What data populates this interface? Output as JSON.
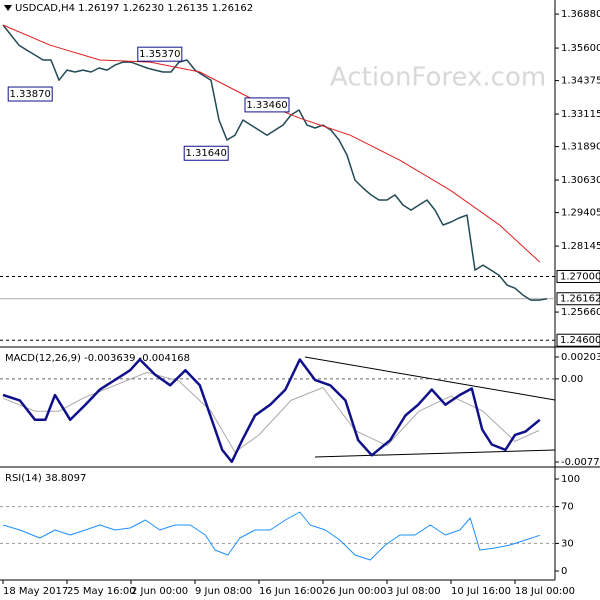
{
  "chart_data": [
    {
      "type": "line",
      "title": "USDCAD,H4  1.26197 1.26230 1.26135 1.26162",
      "watermark": "ActionForex.com",
      "xlim": [
        0,
        69
      ],
      "ylim": [
        1.2442,
        1.3741
      ],
      "yticks": [
        {
          "value": 1.3688,
          "label": "1.36880"
        },
        {
          "value": 1.356,
          "label": "1.35600"
        },
        {
          "value": 1.34375,
          "label": "1.34375"
        },
        {
          "value": 1.33115,
          "label": "1.33115"
        },
        {
          "value": 1.3189,
          "label": "1.31890"
        },
        {
          "value": 1.3063,
          "label": "1.30630"
        },
        {
          "value": 1.29405,
          "label": "1.29405"
        },
        {
          "value": 1.28145,
          "label": "1.28145"
        },
        {
          "value": 1.2566,
          "label": "1.25660"
        }
      ],
      "levels": [
        {
          "value": 1.27,
          "label": "1.27000",
          "style": "dashed"
        },
        {
          "value": 1.26162,
          "label": "1.26162",
          "style": "solid"
        },
        {
          "value": 1.246,
          "label": "1.24600",
          "style": "dashed"
        }
      ],
      "annotations": [
        {
          "label": "1.35370",
          "x": 19.6,
          "y": 1.3537
        },
        {
          "label": "1.33870",
          "x": 3.4,
          "y": 1.3387
        },
        {
          "label": "1.33460",
          "x": 33,
          "y": 1.3346
        },
        {
          "label": "1.31640",
          "x": 25.4,
          "y": 1.3164
        }
      ],
      "series": [
        {
          "color": "#234a57",
          "width": 1.5,
          "x": [
            0,
            1,
            2,
            3,
            4,
            5,
            6,
            7,
            8,
            9,
            10,
            11,
            12,
            13,
            14,
            15,
            16,
            17,
            18,
            19,
            20,
            21,
            22,
            23,
            24,
            25,
            26,
            27,
            28,
            29,
            30,
            31,
            32,
            33,
            34,
            35,
            36,
            37,
            38,
            39,
            40,
            41,
            42,
            43,
            44,
            45,
            46,
            47,
            48,
            49,
            50,
            51,
            52,
            53,
            54,
            55,
            56,
            57,
            58,
            59,
            60,
            61,
            62,
            63,
            64,
            65,
            66,
            67,
            68
          ],
          "values": [
            1.3647,
            1.3609,
            1.3571,
            1.3552,
            1.3534,
            1.3515,
            1.3515,
            1.3439,
            1.3477,
            1.347,
            1.3477,
            1.347,
            1.3485,
            1.3477,
            1.3496,
            1.3507,
            1.3507,
            1.3496,
            1.3485,
            1.3477,
            1.347,
            1.347,
            1.3507,
            1.3515,
            1.3477,
            1.3458,
            1.3439,
            1.3289,
            1.3214,
            1.3232,
            1.3289,
            1.327,
            1.3251,
            1.3232,
            1.3251,
            1.327,
            1.3308,
            1.3327,
            1.327,
            1.3259,
            1.327,
            1.3251,
            1.3214,
            1.3157,
            1.3063,
            1.3033,
            1.3007,
            1.2988,
            1.2988,
            1.3007,
            1.2969,
            1.295,
            1.2969,
            1.2988,
            1.295,
            1.2894,
            1.2905,
            1.292,
            1.2931,
            1.2724,
            1.2743,
            1.2724,
            1.2705,
            1.2668,
            1.2656,
            1.263,
            1.2611,
            1.2611,
            1.2616
          ]
        },
        {
          "color": "#e02020",
          "width": 1,
          "x": [
            0,
            5.9,
            12.1,
            18.4,
            24.6,
            30.9,
            37.1,
            43.4,
            49.6,
            55.9,
            62.1,
            67.1
          ],
          "values": [
            1.3647,
            1.3571,
            1.3515,
            1.3507,
            1.347,
            1.3372,
            1.3296,
            1.3232,
            1.3138,
            1.3025,
            1.2893,
            1.2754
          ]
        }
      ]
    },
    {
      "type": "line",
      "title": "MACD(12,26,9) -0.003639 -0.004168",
      "xlim": [
        0,
        69
      ],
      "ylim": [
        -0.008,
        0.00268
      ],
      "yticks": [
        0.00203,
        {
          "value": 0,
          "label": "0.00"
        },
        -0.00772
      ],
      "zero_line": 0,
      "series": [
        {
          "color": "#aaaaaa",
          "width": 1,
          "x": [
            0,
            4,
            7,
            10,
            14,
            18,
            22,
            26,
            29,
            32,
            36,
            40,
            44,
            48,
            52,
            56,
            60,
            64,
            67
          ],
          "values": [
            -0.0018,
            -0.003,
            -0.003,
            -0.0018,
            -0.0006,
            0.0006,
            -0.0002,
            -0.003,
            -0.0068,
            -0.0052,
            -0.002,
            -0.0008,
            -0.0048,
            -0.0062,
            -0.003,
            -0.0016,
            -0.003,
            -0.0058,
            -0.0048
          ]
        },
        {
          "color": "#10108a",
          "width": 2.5,
          "x": [
            0,
            2.1,
            4,
            5.3,
            6.5,
            8.4,
            10.3,
            12.1,
            14,
            15.9,
            17.1,
            19,
            20.9,
            22.8,
            24.6,
            26.1,
            27.4,
            28.6,
            29.9,
            31.5,
            33.4,
            35.3,
            37.1,
            39,
            40.9,
            42.8,
            44.4,
            46.1,
            48.4,
            50.3,
            51.9,
            53.6,
            55.3,
            57.1,
            58.6,
            59.9,
            61.1,
            62.8,
            64,
            65.3,
            67.1
          ],
          "values": [
            -0.0015,
            -0.002,
            -0.0038,
            -0.0038,
            -0.0015,
            -0.0038,
            -0.0024,
            -0.001,
            -0.0001,
            0.0008,
            0.0018,
            0.0004,
            -0.0006,
            0.0008,
            -0.0006,
            -0.0038,
            -0.0066,
            -0.0077,
            -0.0057,
            -0.0034,
            -0.0024,
            -0.001,
            0.0018,
            -0.0001,
            -0.0006,
            -0.002,
            -0.0057,
            -0.0071,
            -0.0057,
            -0.0034,
            -0.0024,
            -0.001,
            -0.0024,
            -0.0015,
            -0.0009,
            -0.0047,
            -0.0061,
            -0.0066,
            -0.0052,
            -0.0049,
            -0.0038
          ]
        }
      ]
    },
    {
      "type": "line",
      "title": "RSI(14) 38.8097",
      "xlim": [
        0,
        69
      ],
      "ylim": [
        -7.6,
        109.8
      ],
      "yticks": [
        100,
        70,
        30,
        0
      ],
      "dashed_levels": [
        70,
        30
      ],
      "xticks": [
        {
          "value": 0,
          "label": "18 May 2017"
        },
        {
          "value": 8,
          "label": "25 May 16:00"
        },
        {
          "value": 16,
          "label": "2 Jun 00:00"
        },
        {
          "value": 24,
          "label": "9 Jun 08:00"
        },
        {
          "value": 32,
          "label": "16 Jun 16:00"
        },
        {
          "value": 40,
          "label": "26 Jun 00:00"
        },
        {
          "value": 48,
          "label": "3 Jul 08:00"
        },
        {
          "value": 56,
          "label": "10 Jul 16:00"
        },
        {
          "value": 64,
          "label": "18 Jul 00:00"
        }
      ],
      "series": [
        {
          "color": "#1e90ff",
          "width": 1,
          "x": [
            0,
            2.1,
            4.6,
            6.5,
            8.4,
            10.3,
            12.1,
            14,
            15.9,
            17.8,
            19.6,
            21.5,
            23.4,
            25.3,
            26.5,
            28.1,
            29.6,
            31.5,
            33.4,
            35.3,
            37.1,
            38.4,
            40.3,
            42.1,
            44,
            45.9,
            47.8,
            49.6,
            51.5,
            53.4,
            55.3,
            57.1,
            58.4,
            59.6,
            61.5,
            63.4,
            65.3,
            67.1
          ],
          "values": [
            50,
            44.6,
            35.9,
            44.6,
            39.1,
            44.6,
            50,
            44.6,
            46.7,
            55.4,
            44.6,
            50,
            50,
            39.1,
            22.8,
            17.4,
            35.9,
            44.6,
            44.6,
            55.4,
            64.1,
            50,
            44.6,
            33.7,
            17.4,
            12,
            28.3,
            39.1,
            39.1,
            50,
            39.1,
            44.6,
            57.6,
            22.8,
            25,
            28.3,
            33.7,
            38.8
          ]
        }
      ]
    }
  ]
}
